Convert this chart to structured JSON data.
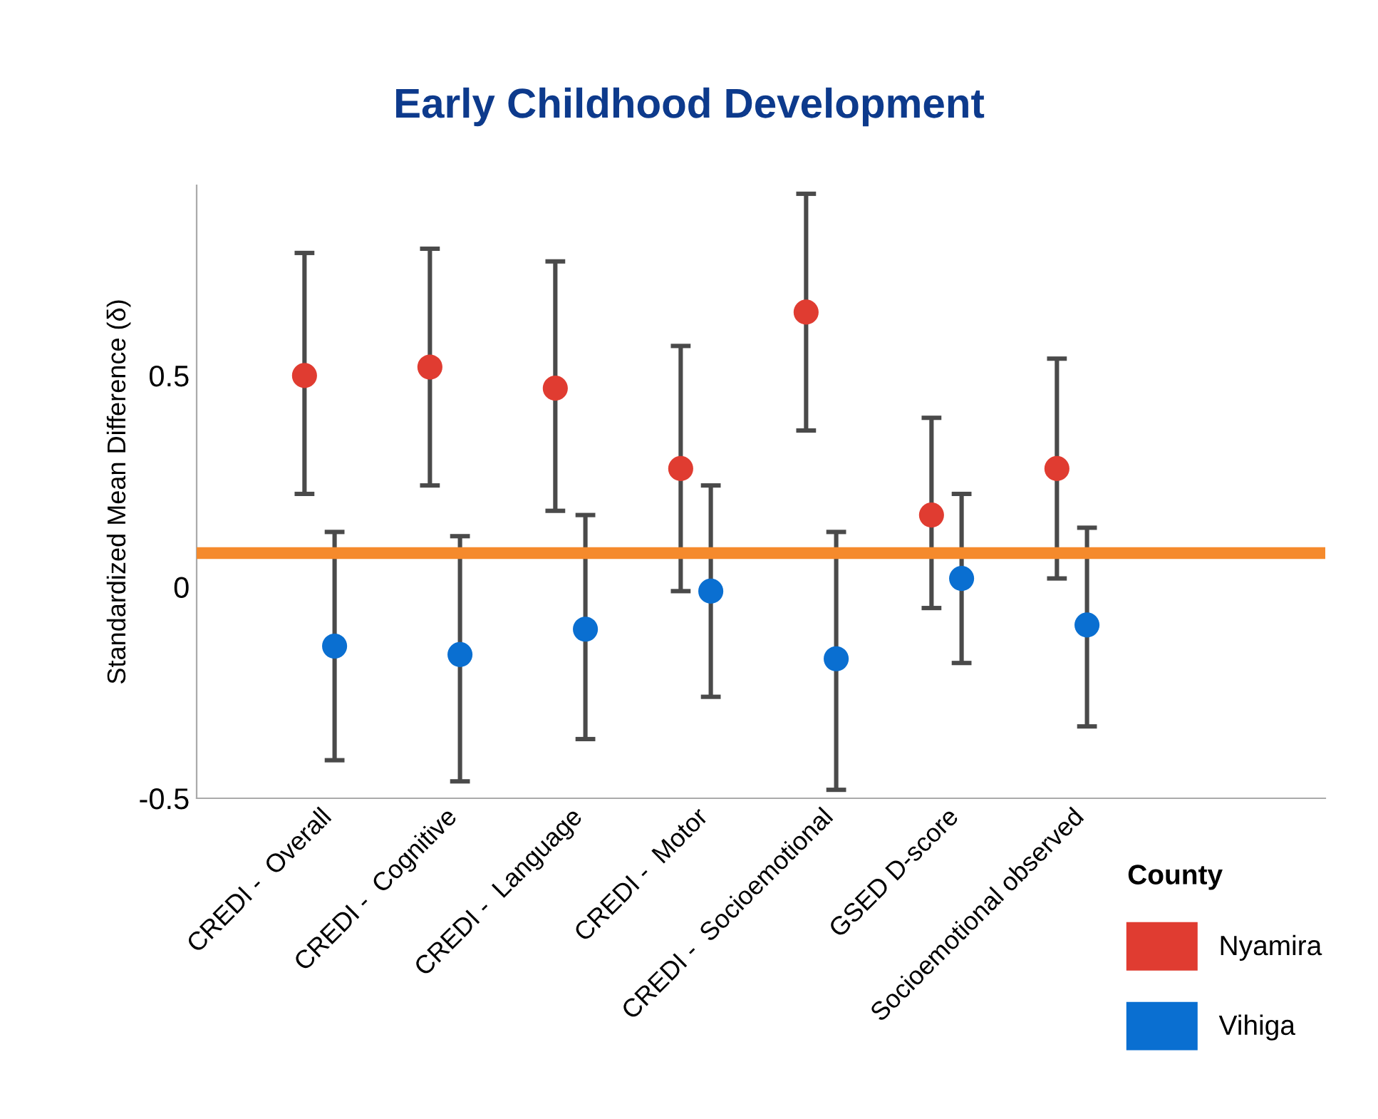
{
  "chart_data": {
    "type": "scatter",
    "title": "Early Childhood Development",
    "ylabel": "Standardized Mean Difference (δ)",
    "legend_title": "County",
    "categories": [
      "CREDI -  Overall",
      "CREDI -  Cognitive",
      "CREDI -  Language",
      "CREDI -  Motor",
      "CREDI -  Socioemotional",
      "GSED D-score",
      "Socioemotional observed"
    ],
    "series": [
      {
        "name": "Nyamira",
        "color": "#e03c31",
        "values": [
          0.5,
          0.52,
          0.47,
          0.28,
          0.65,
          0.17,
          0.28
        ],
        "errors": [
          [
            0.22,
            0.79
          ],
          [
            0.24,
            0.8
          ],
          [
            0.18,
            0.77
          ],
          [
            -0.01,
            0.57
          ],
          [
            0.37,
            0.93
          ],
          [
            -0.05,
            0.4
          ],
          [
            0.02,
            0.54
          ]
        ]
      },
      {
        "name": "Vihiga",
        "color": "#0a6fd1",
        "values": [
          -0.14,
          -0.16,
          -0.1,
          -0.01,
          -0.17,
          0.02,
          -0.09
        ],
        "errors": [
          [
            -0.41,
            0.13
          ],
          [
            -0.46,
            0.12
          ],
          [
            -0.36,
            0.17
          ],
          [
            -0.26,
            0.24
          ],
          [
            -0.48,
            0.13
          ],
          [
            -0.18,
            0.22
          ],
          [
            -0.33,
            0.14
          ]
        ]
      }
    ],
    "ylim": [
      -0.5,
      0.95
    ],
    "yticks": [
      {
        "value": -0.5,
        "label": "-0.5"
      },
      0,
      0.5
    ],
    "ref_lines": [
      {
        "axis": "y",
        "value": 0.08,
        "color": "#f58a2c"
      }
    ],
    "grid": false,
    "legend": "right",
    "marker": "circle"
  }
}
